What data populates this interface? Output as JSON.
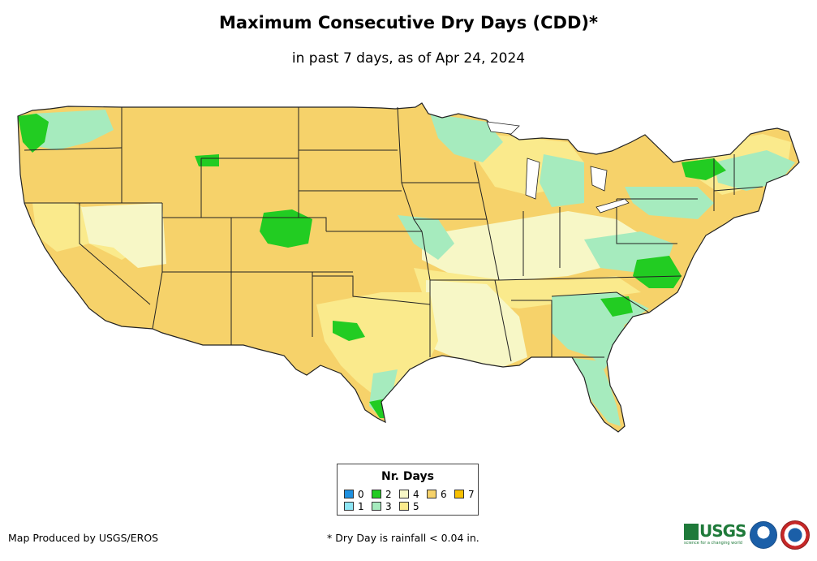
{
  "title": "Maximum Consecutive Dry Days (CDD)*",
  "subtitle": "in past 7 days, as of Apr 24, 2024",
  "legend": {
    "title": "Nr. Days",
    "items": [
      {
        "label": "0",
        "color": "#1e90e0"
      },
      {
        "label": "1",
        "color": "#8ee6f5"
      },
      {
        "label": "2",
        "color": "#22cc22"
      },
      {
        "label": "3",
        "color": "#a6ebbe"
      },
      {
        "label": "4",
        "color": "#f7f7c6"
      },
      {
        "label": "5",
        "color": "#faea8c"
      },
      {
        "label": "6",
        "color": "#f6d26a"
      },
      {
        "label": "7",
        "color": "#f8c000"
      }
    ]
  },
  "credit": "Map Produced by USGS/EROS",
  "footnote": "* Dry Day is rainfall < 0.04 in.",
  "logos": {
    "usgs": "USGS",
    "usgs_tagline": "science for a changing world"
  },
  "map_colors": {
    "background": "#ffffff",
    "land_base": "#f6d26a",
    "border": "#222222"
  }
}
